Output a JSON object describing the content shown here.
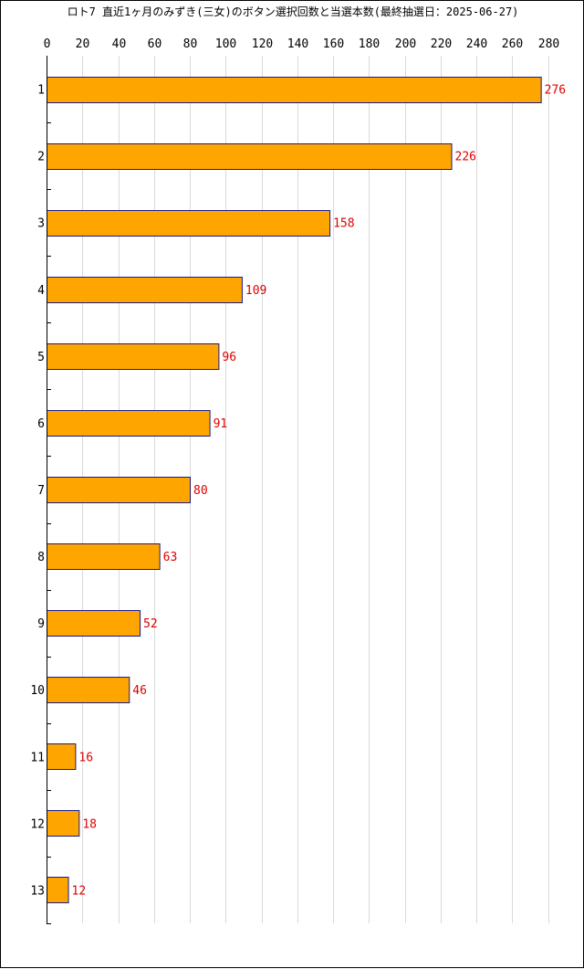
{
  "chart_data": {
    "type": "bar",
    "orientation": "horizontal",
    "title": "ロト7 直近1ヶ月のみずき(三女)のボタン選択回数と当選本数(最終抽選日：2025-06-27)",
    "categories": [
      "1",
      "2",
      "3",
      "4",
      "5",
      "6",
      "7",
      "8",
      "9",
      "10",
      "11",
      "12",
      "13"
    ],
    "values": [
      276,
      226,
      158,
      109,
      96,
      91,
      80,
      63,
      52,
      46,
      16,
      18,
      12
    ],
    "xlim": [
      0,
      280
    ],
    "xticks": [
      0,
      20,
      40,
      60,
      80,
      100,
      120,
      140,
      160,
      180,
      200,
      220,
      240,
      260,
      280
    ],
    "x_axis_position": "top",
    "grid": true,
    "data_labels": true,
    "xlabel": "",
    "ylabel": "",
    "colors": {
      "bar_fill": "#ffa500",
      "bar_stroke": "#1a1a8c",
      "value_label": "#e00000",
      "grid": "#d9d9d9",
      "axis": "#000000"
    }
  }
}
